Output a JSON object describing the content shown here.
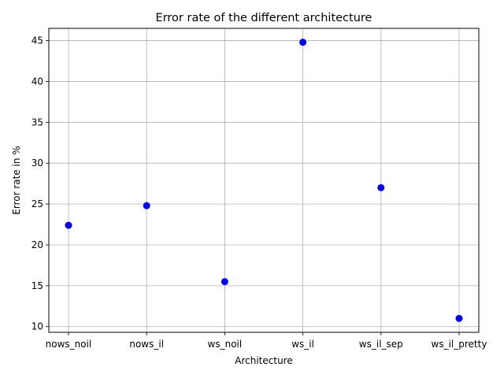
{
  "chart_data": {
    "type": "scatter",
    "title": "Error rate of the different architecture",
    "xlabel": "Architecture",
    "ylabel": "Error rate in %",
    "categories": [
      "nows_noil",
      "nows_il",
      "ws_noil",
      "ws_il",
      "ws_il_sep",
      "ws_il_pretty"
    ],
    "values": [
      22.4,
      24.8,
      15.5,
      44.8,
      27.0,
      11.0
    ],
    "ylim": [
      9.3,
      46.5
    ],
    "yticks": [
      10,
      15,
      20,
      25,
      30,
      35,
      40,
      45
    ],
    "grid": true,
    "marker_color": "#0000ff"
  }
}
